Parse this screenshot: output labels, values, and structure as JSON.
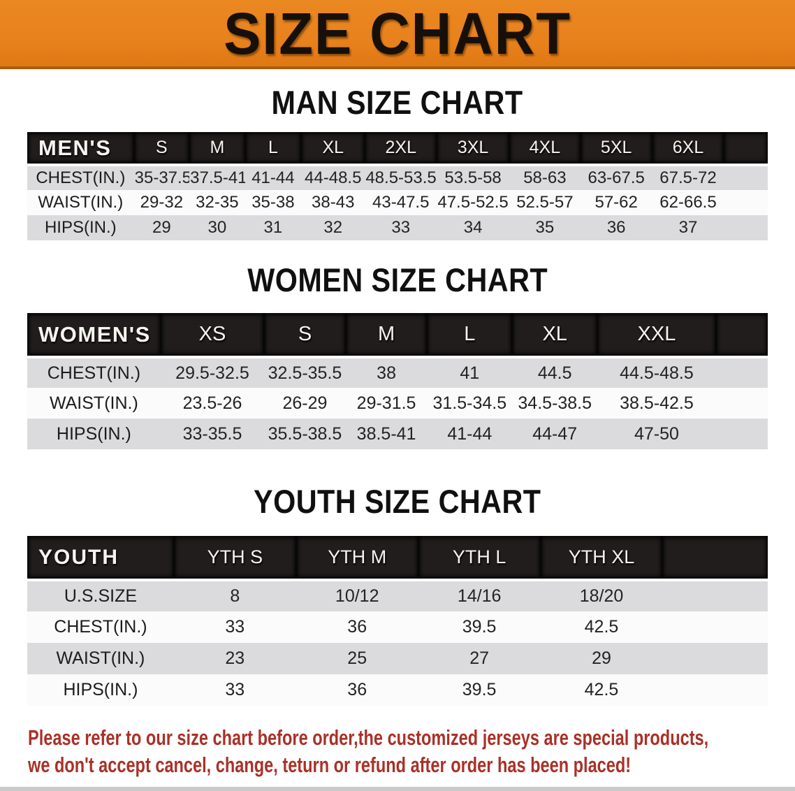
{
  "banner": {
    "title": "SIZE CHART",
    "bg_color": "#E8811B"
  },
  "sections": [
    {
      "heading": "MAN SIZE CHART",
      "table": {
        "corner_label": "MEN'S",
        "columns": [
          "S",
          "M",
          "L",
          "XL",
          "2XL",
          "3XL",
          "4XL",
          "5XL",
          "6XL"
        ],
        "rows": [
          {
            "label": "CHEST(IN.)",
            "values": [
              "35-37.5",
              "37.5-41",
              "41-44",
              "44-48.5",
              "48.5-53.5",
              "53.5-58",
              "58-63",
              "63-67.5",
              "67.5-72"
            ]
          },
          {
            "label": "WAIST(IN.)",
            "values": [
              "29-32",
              "32-35",
              "35-38",
              "38-43",
              "43-47.5",
              "47.5-52.5",
              "52.5-57",
              "57-62",
              "62-66.5"
            ]
          },
          {
            "label": "HIPS(IN.)",
            "values": [
              "29",
              "30",
              "31",
              "32",
              "33",
              "34",
              "35",
              "36",
              "37"
            ]
          }
        ]
      }
    },
    {
      "heading": "WOMEN SIZE CHART",
      "table": {
        "corner_label": "WOMEN'S",
        "columns": [
          "XS",
          "S",
          "M",
          "L",
          "XL",
          "XXL"
        ],
        "rows": [
          {
            "label": "CHEST(IN.)",
            "values": [
              "29.5-32.5",
              "32.5-35.5",
              "38",
              "41",
              "44.5",
              "44.5-48.5"
            ]
          },
          {
            "label": "WAIST(IN.)",
            "values": [
              "23.5-26",
              "26-29",
              "29-31.5",
              "31.5-34.5",
              "34.5-38.5",
              "38.5-42.5"
            ]
          },
          {
            "label": "HIPS(IN.)",
            "values": [
              "33-35.5",
              "35.5-38.5",
              "38.5-41",
              "41-44",
              "44-47",
              "47-50"
            ]
          }
        ]
      }
    },
    {
      "heading": "YOUTH SIZE CHART",
      "table": {
        "corner_label": "YOUTH",
        "columns": [
          "YTH S",
          "YTH M",
          "YTH L",
          "YTH XL"
        ],
        "rows": [
          {
            "label": "U.S.SIZE",
            "values": [
              "8",
              "10/12",
              "14/16",
              "18/20"
            ]
          },
          {
            "label": "CHEST(IN.)",
            "values": [
              "33",
              "36",
              "39.5",
              "42.5"
            ]
          },
          {
            "label": "WAIST(IN.)",
            "values": [
              "23",
              "25",
              "27",
              "29"
            ]
          },
          {
            "label": "HIPS(IN.)",
            "values": [
              "33",
              "36",
              "39.5",
              "42.5"
            ]
          }
        ]
      }
    }
  ],
  "footnote": {
    "line1": "Please refer to our size chart before order,the customized jerseys are special products,",
    "line2": "we don't accept cancel, change, teturn or refund after order has been placed!",
    "color": "#A93128"
  }
}
